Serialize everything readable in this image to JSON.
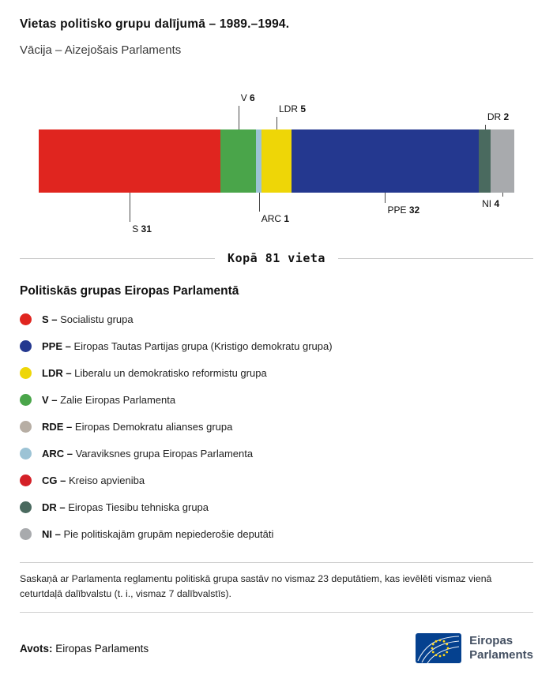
{
  "header": {
    "title": "Vietas politisko grupu dalījumā – 1989.–1994.",
    "subtitle": "Vācija – Aizejošais Parlaments"
  },
  "chart_data": {
    "type": "bar",
    "title": "Kopā 81 vieta",
    "total_seats": 81,
    "orientation": "horizontal-stacked",
    "segments": [
      {
        "label": "S",
        "value": 31,
        "color": "#e0251f",
        "label_pos": "below",
        "tier": 4
      },
      {
        "label": "V",
        "value": 6,
        "color": "#4aa54a",
        "label_pos": "above",
        "tier": 3
      },
      {
        "label": "ARC",
        "value": 1,
        "color": "#9cc3d5",
        "label_pos": "below",
        "tier": 3
      },
      {
        "label": "LDR",
        "value": 5,
        "color": "#eed607",
        "label_pos": "above",
        "tier": 2
      },
      {
        "label": "PPE",
        "value": 32,
        "color": "#24388f",
        "label_pos": "below",
        "tier": 2
      },
      {
        "label": "DR",
        "value": 2,
        "color": "#4a6a5f",
        "label_pos": "above",
        "tier": 1
      },
      {
        "label": "NI",
        "value": 4,
        "color": "#a8aaad",
        "label_pos": "below",
        "tier": 1,
        "align": "right"
      }
    ]
  },
  "legend": {
    "title": "Politiskās grupas Eiropas Parlamentā",
    "items": [
      {
        "abbr": "S –",
        "name": "Socialistu grupa",
        "color": "#e0251f"
      },
      {
        "abbr": "PPE –",
        "name": "Eiropas Tautas Partijas grupa (Kristigo demokratu grupa)",
        "color": "#24388f"
      },
      {
        "abbr": "LDR –",
        "name": "Liberalu un demokratisko reformistu grupa",
        "color": "#eed607"
      },
      {
        "abbr": "V –",
        "name": "Zalie Eiropas Parlamenta",
        "color": "#4aa54a"
      },
      {
        "abbr": "RDE –",
        "name": "Eiropas Demokratu alianses grupa",
        "color": "#b7aea4"
      },
      {
        "abbr": "ARC –",
        "name": "Varaviksnes grupa Eiropas Parlamenta",
        "color": "#9cc3d5"
      },
      {
        "abbr": "CG –",
        "name": "Kreiso apvieniba",
        "color": "#d42027"
      },
      {
        "abbr": "DR –",
        "name": "Eiropas Tiesibu tehniska grupa",
        "color": "#4a6a5f"
      },
      {
        "abbr": "NI –",
        "name": "Pie politiskajām grupām nepiederošie deputāti",
        "color": "#a8aaad"
      }
    ]
  },
  "footnote": "Saskaņā ar Parlamenta reglamentu politiskā grupa sastāv no vismaz 23 deputātiem, kas ievēlēti vismaz vienā ceturtdaļā dalībvalstu (t. i., vismaz 7 dalībvalstīs).",
  "source": {
    "label": "Avots:",
    "value": "Eiropas Parlaments"
  },
  "logo": {
    "line1": "Eiropas",
    "line2": "Parlaments"
  }
}
